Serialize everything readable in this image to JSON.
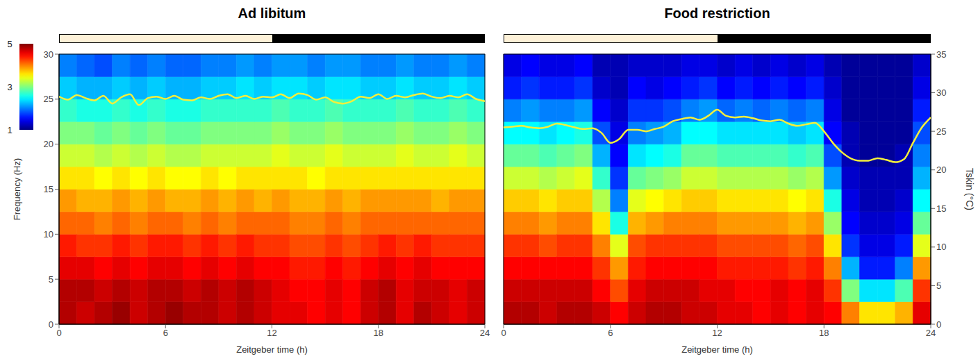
{
  "chart_data": [
    {
      "type": "heatmap",
      "title": "Ad libitum",
      "x_label": "Zeitgeber time (h)",
      "y_label": "Frequency (Hz)",
      "xlim": [
        0,
        24
      ],
      "xticks": [
        0,
        6,
        12,
        18,
        24
      ],
      "ylim": [
        0,
        30
      ],
      "yticks": [
        0,
        5,
        10,
        15,
        20,
        25,
        30
      ],
      "y2lim": [
        0,
        35
      ],
      "light_dark": [
        {
          "start": 0,
          "end": 12,
          "color": "#fdf1d8"
        },
        {
          "start": 12,
          "end": 24,
          "color": "#000000"
        }
      ],
      "colorbar": {
        "range": [
          1,
          5
        ],
        "ticks": [
          1,
          3,
          5
        ]
      },
      "heatmap": {
        "x_bins": [
          0,
          1,
          2,
          3,
          4,
          5,
          6,
          7,
          8,
          9,
          10,
          11,
          12,
          13,
          14,
          15,
          16,
          17,
          18,
          19,
          20,
          21,
          22,
          23,
          24
        ],
        "y_bins": [
          0,
          2.5,
          5,
          7.5,
          10,
          12.5,
          15,
          17.5,
          20,
          22.5,
          25,
          27.5,
          30
        ],
        "values": [
          [
            4.8,
            4.8,
            4.6,
            4.4,
            4.1,
            3.9,
            3.6,
            3.3,
            3.0,
            2.7,
            2.3,
            2.0
          ],
          [
            4.7,
            4.8,
            4.6,
            4.3,
            4.1,
            3.8,
            3.6,
            3.3,
            3.0,
            2.6,
            2.2,
            1.9
          ],
          [
            4.8,
            4.7,
            4.5,
            4.3,
            4.0,
            3.8,
            3.5,
            3.2,
            2.9,
            2.6,
            2.2,
            1.8
          ],
          [
            4.9,
            4.8,
            4.6,
            4.4,
            4.1,
            3.9,
            3.6,
            3.3,
            3.0,
            2.7,
            2.3,
            2.0
          ],
          [
            4.7,
            4.7,
            4.5,
            4.3,
            4.0,
            3.8,
            3.5,
            3.2,
            2.9,
            2.6,
            2.2,
            1.9
          ],
          [
            4.8,
            4.8,
            4.6,
            4.4,
            4.1,
            3.9,
            3.6,
            3.3,
            3.0,
            2.7,
            2.3,
            2.0
          ],
          [
            4.9,
            4.8,
            4.6,
            4.4,
            4.1,
            3.8,
            3.5,
            3.2,
            2.9,
            2.6,
            2.2,
            1.9
          ],
          [
            4.8,
            4.7,
            4.5,
            4.3,
            4.0,
            3.8,
            3.5,
            3.2,
            2.9,
            2.6,
            2.2,
            1.9
          ],
          [
            4.8,
            4.8,
            4.6,
            4.4,
            4.1,
            3.9,
            3.6,
            3.3,
            3.0,
            2.7,
            2.3,
            2.0
          ],
          [
            4.7,
            4.7,
            4.5,
            4.3,
            4.0,
            3.8,
            3.5,
            3.3,
            3.0,
            2.7,
            2.3,
            2.0
          ],
          [
            4.8,
            4.8,
            4.6,
            4.4,
            4.1,
            3.9,
            3.6,
            3.3,
            3.0,
            2.7,
            2.4,
            2.1
          ],
          [
            4.7,
            4.7,
            4.5,
            4.3,
            4.1,
            3.8,
            3.6,
            3.3,
            3.0,
            2.7,
            2.3,
            2.0
          ],
          [
            4.6,
            4.6,
            4.5,
            4.3,
            4.1,
            3.9,
            3.6,
            3.4,
            3.1,
            2.8,
            2.4,
            2.1
          ],
          [
            4.6,
            4.5,
            4.4,
            4.2,
            4.0,
            3.8,
            3.6,
            3.3,
            3.0,
            2.7,
            2.4,
            2.1
          ],
          [
            4.5,
            4.5,
            4.4,
            4.2,
            4.0,
            3.8,
            3.5,
            3.3,
            3.0,
            2.7,
            2.3,
            2.0
          ],
          [
            4.6,
            4.6,
            4.5,
            4.3,
            4.1,
            3.9,
            3.6,
            3.4,
            3.1,
            2.8,
            2.4,
            2.1
          ],
          [
            4.5,
            4.5,
            4.4,
            4.2,
            4.0,
            3.8,
            3.6,
            3.3,
            3.0,
            2.7,
            2.4,
            2.1
          ],
          [
            4.7,
            4.7,
            4.5,
            4.3,
            4.1,
            3.9,
            3.6,
            3.3,
            3.0,
            2.7,
            2.3,
            2.0
          ],
          [
            4.8,
            4.8,
            4.6,
            4.4,
            4.1,
            3.9,
            3.6,
            3.3,
            3.0,
            2.7,
            2.3,
            2.0
          ],
          [
            4.6,
            4.6,
            4.5,
            4.3,
            4.1,
            3.9,
            3.6,
            3.4,
            3.1,
            2.8,
            2.4,
            2.1
          ],
          [
            4.8,
            4.7,
            4.6,
            4.4,
            4.1,
            3.9,
            3.6,
            3.3,
            3.0,
            2.7,
            2.3,
            2.0
          ],
          [
            4.7,
            4.7,
            4.5,
            4.3,
            4.1,
            3.8,
            3.6,
            3.3,
            3.0,
            2.7,
            2.3,
            2.0
          ],
          [
            4.6,
            4.6,
            4.5,
            4.3,
            4.1,
            3.9,
            3.6,
            3.4,
            3.1,
            2.8,
            2.4,
            2.1
          ],
          [
            4.7,
            4.7,
            4.5,
            4.3,
            4.1,
            3.9,
            3.6,
            3.3,
            3.0,
            2.7,
            2.3,
            2.0
          ]
        ]
      },
      "series": [
        {
          "type": "line",
          "color": "#f4ef3c",
          "axis": "y2",
          "x": [
            0,
            0.5,
            1,
            1.5,
            2,
            2.5,
            3,
            3.5,
            4,
            4.5,
            5,
            5.5,
            6,
            6.5,
            7,
            7.5,
            8,
            8.5,
            9,
            9.5,
            10,
            10.5,
            11,
            11.5,
            12,
            12.5,
            13,
            13.5,
            14,
            14.5,
            15,
            15.5,
            16,
            16.5,
            17,
            17.5,
            18,
            18.5,
            19,
            19.5,
            20,
            20.5,
            21,
            21.5,
            22,
            22.5,
            23,
            23.5,
            24
          ],
          "values": [
            29.5,
            29.1,
            29.7,
            29.3,
            29.0,
            29.6,
            28.6,
            29.4,
            29.8,
            28.4,
            29.3,
            29.5,
            29.2,
            29.6,
            29.1,
            29.0,
            29.4,
            29.2,
            29.6,
            29.8,
            29.3,
            29.6,
            29.2,
            29.5,
            29.4,
            29.8,
            29.3,
            29.9,
            29.7,
            29.1,
            29.4,
            28.8,
            28.6,
            28.9,
            29.5,
            29.3,
            29.8,
            29.2,
            29.6,
            29.4,
            29.7,
            29.9,
            29.5,
            29.3,
            29.6,
            29.4,
            29.8,
            29.2,
            28.9
          ]
        }
      ]
    },
    {
      "type": "heatmap",
      "title": "Food restriction",
      "x_label": "Zeitgeber time (h)",
      "y2_label": "Tskin (°C)",
      "xlim": [
        0,
        24
      ],
      "xticks": [
        0,
        6,
        12,
        18,
        24
      ],
      "ylim": [
        0,
        30
      ],
      "y2lim": [
        0,
        35
      ],
      "y2ticks": [
        0,
        5,
        10,
        15,
        20,
        25,
        30,
        35
      ],
      "light_dark": [
        {
          "start": 0,
          "end": 12,
          "color": "#fdf1d8"
        },
        {
          "start": 12,
          "end": 24,
          "color": "#000000"
        }
      ],
      "heatmap": {
        "x_bins": [
          0,
          1,
          2,
          3,
          4,
          5,
          6,
          7,
          8,
          9,
          10,
          11,
          12,
          13,
          14,
          15,
          16,
          17,
          18,
          19,
          20,
          21,
          22,
          23,
          24
        ],
        "y_bins": [
          0,
          2.5,
          5,
          7.5,
          10,
          12.5,
          15,
          17.5,
          20,
          22.5,
          25,
          27.5,
          30
        ],
        "values": [
          [
            4.8,
            4.7,
            4.5,
            4.3,
            4.0,
            3.7,
            3.3,
            2.9,
            2.5,
            2.0,
            1.6,
            1.4
          ],
          [
            4.8,
            4.7,
            4.5,
            4.3,
            4.0,
            3.7,
            3.3,
            2.9,
            2.5,
            2.1,
            1.7,
            1.5
          ],
          [
            4.7,
            4.7,
            4.5,
            4.2,
            3.9,
            3.6,
            3.2,
            2.8,
            2.4,
            2.0,
            1.6,
            1.4
          ],
          [
            4.8,
            4.7,
            4.5,
            4.3,
            4.0,
            3.7,
            3.3,
            2.9,
            2.5,
            2.0,
            1.6,
            1.4
          ],
          [
            4.8,
            4.7,
            4.5,
            4.3,
            4.0,
            3.7,
            3.4,
            3.0,
            2.6,
            2.1,
            1.7,
            1.5
          ],
          [
            4.7,
            4.5,
            4.3,
            4.0,
            3.6,
            3.2,
            2.7,
            2.2,
            1.8,
            1.5,
            1.3,
            1.2
          ],
          [
            4.5,
            4.2,
            3.9,
            3.4,
            2.6,
            2.0,
            1.7,
            1.5,
            1.4,
            1.3,
            1.2,
            1.2
          ],
          [
            4.7,
            4.6,
            4.4,
            4.2,
            3.8,
            3.4,
            2.9,
            2.4,
            2.0,
            1.7,
            1.5,
            1.3
          ],
          [
            4.8,
            4.7,
            4.5,
            4.3,
            3.9,
            3.5,
            3.0,
            2.5,
            2.1,
            1.7,
            1.4,
            1.3
          ],
          [
            4.8,
            4.7,
            4.5,
            4.3,
            4.0,
            3.6,
            3.1,
            2.6,
            2.2,
            1.8,
            1.5,
            1.3
          ],
          [
            4.7,
            4.7,
            4.5,
            4.3,
            4.0,
            3.7,
            3.3,
            2.9,
            2.5,
            2.0,
            1.6,
            1.4
          ],
          [
            4.7,
            4.6,
            4.5,
            4.3,
            4.0,
            3.7,
            3.3,
            2.9,
            2.5,
            2.1,
            1.7,
            1.4
          ],
          [
            4.6,
            4.6,
            4.4,
            4.2,
            3.9,
            3.6,
            3.2,
            2.8,
            2.4,
            1.9,
            1.5,
            1.3
          ],
          [
            4.6,
            4.5,
            4.4,
            4.2,
            3.9,
            3.6,
            3.2,
            2.8,
            2.4,
            2.0,
            1.6,
            1.4
          ],
          [
            4.5,
            4.5,
            4.4,
            4.2,
            3.9,
            3.6,
            3.2,
            2.8,
            2.4,
            1.9,
            1.5,
            1.3
          ],
          [
            4.6,
            4.6,
            4.4,
            4.2,
            3.9,
            3.6,
            3.2,
            2.8,
            2.4,
            2.0,
            1.6,
            1.4
          ],
          [
            4.5,
            4.5,
            4.3,
            4.1,
            3.8,
            3.5,
            3.1,
            2.7,
            2.3,
            1.9,
            1.5,
            1.3
          ],
          [
            4.6,
            4.6,
            4.4,
            4.2,
            3.9,
            3.6,
            3.2,
            2.8,
            2.4,
            2.0,
            1.6,
            1.4
          ],
          [
            4.5,
            4.3,
            4.0,
            3.6,
            3.1,
            2.6,
            2.1,
            1.8,
            1.5,
            1.4,
            1.3,
            1.2
          ],
          [
            4.0,
            3.0,
            2.2,
            1.7,
            1.5,
            1.4,
            1.3,
            1.2,
            1.2,
            1.1,
            1.1,
            1.1
          ],
          [
            3.6,
            2.4,
            1.6,
            1.4,
            1.3,
            1.2,
            1.2,
            1.1,
            1.1,
            1.1,
            1.1,
            1.1
          ],
          [
            3.6,
            2.4,
            1.6,
            1.4,
            1.3,
            1.2,
            1.2,
            1.1,
            1.1,
            1.1,
            1.1,
            1.1
          ],
          [
            3.8,
            2.8,
            2.0,
            1.6,
            1.4,
            1.3,
            1.2,
            1.2,
            1.1,
            1.1,
            1.1,
            1.1
          ],
          [
            4.6,
            4.3,
            3.9,
            3.4,
            2.9,
            2.5,
            2.2,
            2.0,
            1.8,
            1.6,
            1.4,
            1.3
          ]
        ]
      },
      "series": [
        {
          "type": "line",
          "color": "#f4ef3c",
          "axis": "y2",
          "x": [
            0,
            0.5,
            1,
            1.5,
            2,
            2.5,
            3,
            3.5,
            4,
            4.5,
            5,
            5.5,
            6,
            6.5,
            7,
            7.5,
            8,
            8.5,
            9,
            9.5,
            10,
            10.5,
            11,
            11.5,
            12,
            12.5,
            13,
            13.5,
            14,
            14.5,
            15,
            15.5,
            16,
            16.5,
            17,
            17.5,
            18,
            18.5,
            19,
            19.5,
            20,
            20.5,
            21,
            21.5,
            22,
            22.5,
            23,
            23.5,
            24
          ],
          "values": [
            25.5,
            25.6,
            25.7,
            25.5,
            25.4,
            25.6,
            26.0,
            25.8,
            25.5,
            25.3,
            25.4,
            24.8,
            23.5,
            24.0,
            25.2,
            25.2,
            25.0,
            25.3,
            25.6,
            26.3,
            26.6,
            26.8,
            26.5,
            27.0,
            27.8,
            27.0,
            26.8,
            26.9,
            26.7,
            26.4,
            26.3,
            26.5,
            26.0,
            25.7,
            25.9,
            26.1,
            25.0,
            23.5,
            22.3,
            21.5,
            21.2,
            21.2,
            21.5,
            21.3,
            21.0,
            21.4,
            23.5,
            25.5,
            26.8
          ]
        }
      ]
    }
  ]
}
